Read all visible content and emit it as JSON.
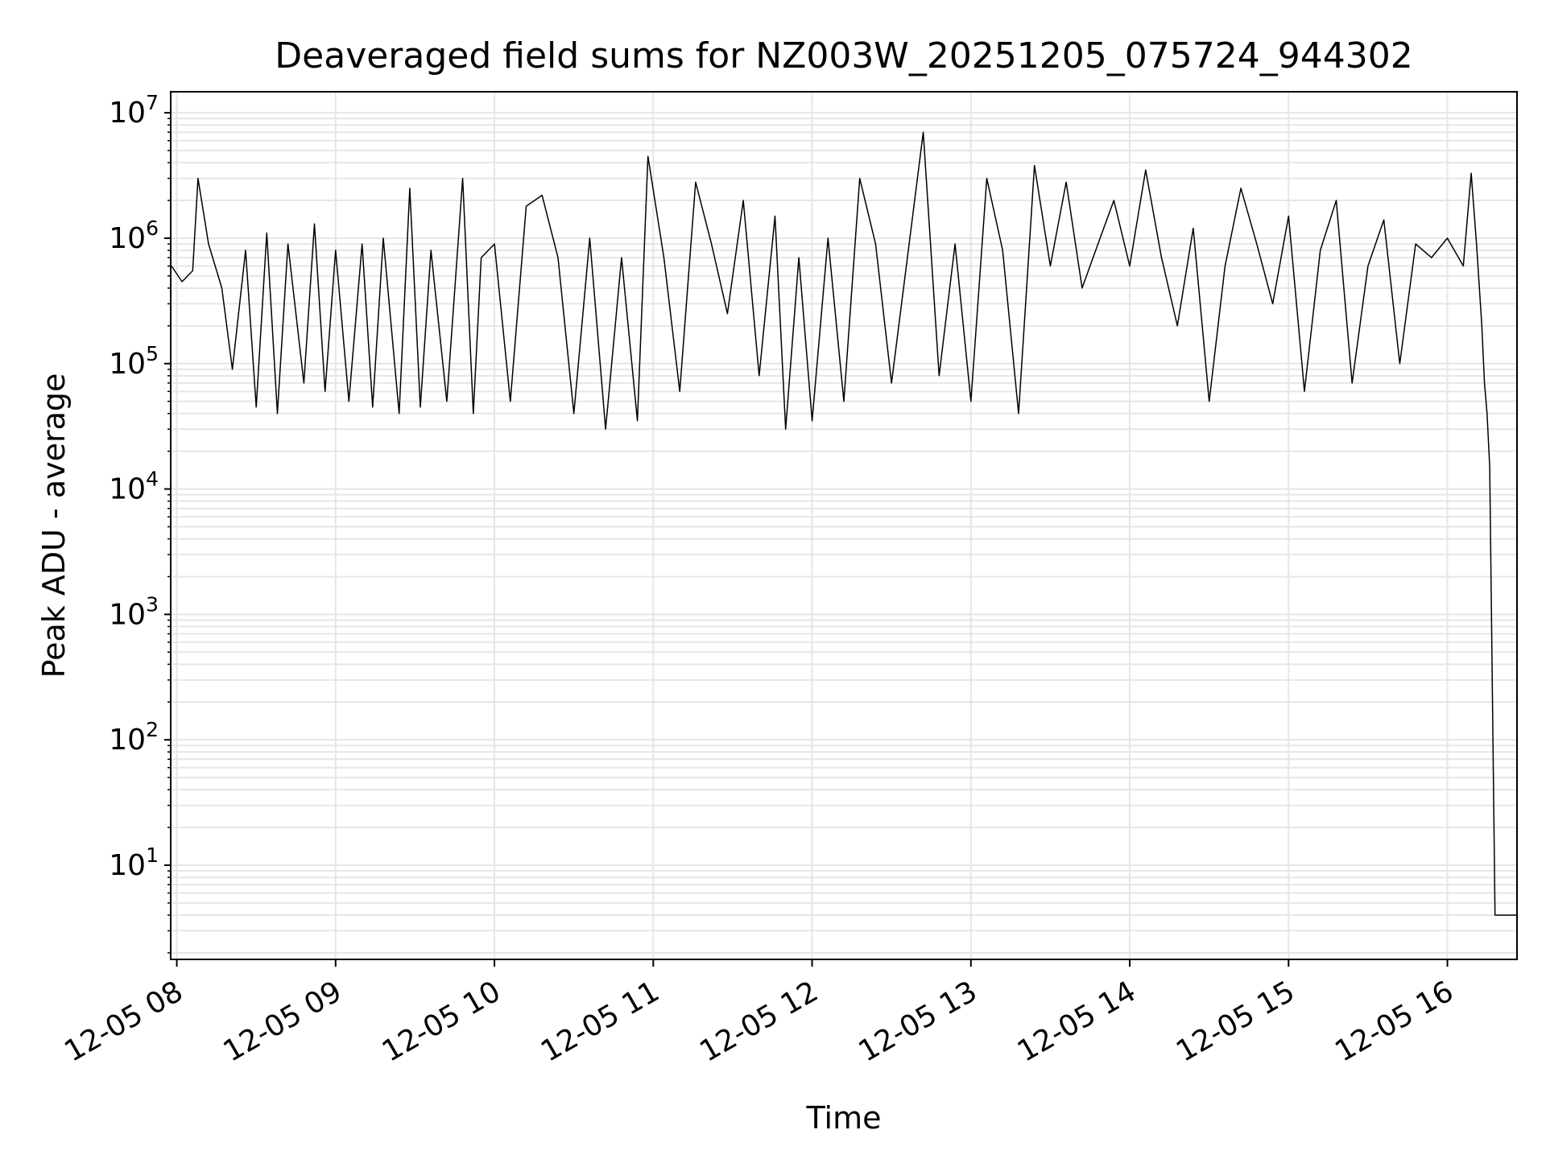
{
  "chart_data": {
    "type": "line",
    "title": "Deaveraged field sums for NZ003W_20251205_075724_944302",
    "xlabel": "Time",
    "ylabel": "Peak ADU - average",
    "yscale": "log",
    "ylim": [
      1.8,
      14500000
    ],
    "xlim": [
      "12-05 07:58",
      "12-05 16:26"
    ],
    "grid": true,
    "line_color": "#000000",
    "grid_color": "#e6e6e6",
    "x_ticks": [
      "12-05 08",
      "12-05 09",
      "12-05 10",
      "12-05 11",
      "12-05 12",
      "12-05 13",
      "12-05 14",
      "12-05 15",
      "12-05 16"
    ],
    "y_ticks": [
      {
        "base": "10",
        "exp": "1",
        "value": 10
      },
      {
        "base": "10",
        "exp": "2",
        "value": 100
      },
      {
        "base": "10",
        "exp": "3",
        "value": 1000
      },
      {
        "base": "10",
        "exp": "4",
        "value": 10000
      },
      {
        "base": "10",
        "exp": "5",
        "value": 100000
      },
      {
        "base": "10",
        "exp": "6",
        "value": 1000000
      },
      {
        "base": "10",
        "exp": "7",
        "value": 10000000
      }
    ],
    "series": [
      {
        "x": [
          "12-05 07:58",
          "12-05 08:02",
          "12-05 08:06",
          "12-05 08:08",
          "12-05 08:12",
          "12-05 08:17",
          "12-05 08:21",
          "12-05 08:26",
          "12-05 08:30",
          "12-05 08:34",
          "12-05 08:38",
          "12-05 08:42",
          "12-05 08:48",
          "12-05 08:52",
          "12-05 08:56",
          "12-05 09:00",
          "12-05 09:05",
          "12-05 09:10",
          "12-05 09:14",
          "12-05 09:18",
          "12-05 09:24",
          "12-05 09:28",
          "12-05 09:32",
          "12-05 09:36",
          "12-05 09:42",
          "12-05 09:48",
          "12-05 09:52",
          "12-05 09:55",
          "12-05 10:00",
          "12-05 10:06",
          "12-05 10:12",
          "12-05 10:18",
          "12-05 10:24",
          "12-05 10:30",
          "12-05 10:36",
          "12-05 10:42",
          "12-05 10:48",
          "12-05 10:54",
          "12-05 10:58",
          "12-05 11:04",
          "12-05 11:10",
          "12-05 11:16",
          "12-05 11:22",
          "12-05 11:28",
          "12-05 11:34",
          "12-05 11:40",
          "12-05 11:46",
          "12-05 11:50",
          "12-05 11:55",
          "12-05 12:00",
          "12-05 12:06",
          "12-05 12:12",
          "12-05 12:18",
          "12-05 12:24",
          "12-05 12:30",
          "12-05 12:36",
          "12-05 12:42",
          "12-05 12:48",
          "12-05 12:54",
          "12-05 13:00",
          "12-05 13:06",
          "12-05 13:12",
          "12-05 13:18",
          "12-05 13:24",
          "12-05 13:30",
          "12-05 13:36",
          "12-05 13:42",
          "12-05 13:48",
          "12-05 13:54",
          "12-05 14:00",
          "12-05 14:06",
          "12-05 14:12",
          "12-05 14:18",
          "12-05 14:24",
          "12-05 14:30",
          "12-05 14:36",
          "12-05 14:42",
          "12-05 14:48",
          "12-05 14:54",
          "12-05 15:00",
          "12-05 15:06",
          "12-05 15:12",
          "12-05 15:18",
          "12-05 15:24",
          "12-05 15:30",
          "12-05 15:36",
          "12-05 15:42",
          "12-05 15:48",
          "12-05 15:54",
          "12-05 16:00",
          "12-05 16:06",
          "12-05 16:09",
          "12-05 16:11",
          "12-05 16:13",
          "12-05 16:14",
          "12-05 16:15",
          "12-05 16:16",
          "12-05 16:18",
          "12-05 16:20",
          "12-05 16:23",
          "12-05 16:26"
        ],
        "y": [
          600000,
          450000,
          550000,
          3000000,
          900000,
          400000,
          90000,
          800000,
          45000,
          1100000,
          40000,
          900000,
          70000,
          1300000,
          60000,
          800000,
          50000,
          900000,
          45000,
          1000000,
          40000,
          2500000,
          45000,
          800000,
          50000,
          3000000,
          40000,
          700000,
          900000,
          50000,
          1800000,
          2200000,
          700000,
          40000,
          1000000,
          30000,
          700000,
          35000,
          4500000,
          700000,
          60000,
          2800000,
          900000,
          250000,
          2000000,
          80000,
          1500000,
          30000,
          700000,
          35000,
          1000000,
          50000,
          3000000,
          900000,
          70000,
          700000,
          7000000,
          80000,
          900000,
          50000,
          3000000,
          800000,
          40000,
          3800000,
          600000,
          2800000,
          400000,
          900000,
          2000000,
          600000,
          3500000,
          700000,
          200000,
          1200000,
          50000,
          600000,
          2500000,
          900000,
          300000,
          1500000,
          60000,
          800000,
          2000000,
          70000,
          600000,
          1400000,
          100000,
          900000,
          700000,
          1000000,
          600000,
          3300000,
          900000,
          200000,
          70000,
          40000,
          15000,
          4,
          4,
          4,
          4
        ]
      }
    ]
  }
}
